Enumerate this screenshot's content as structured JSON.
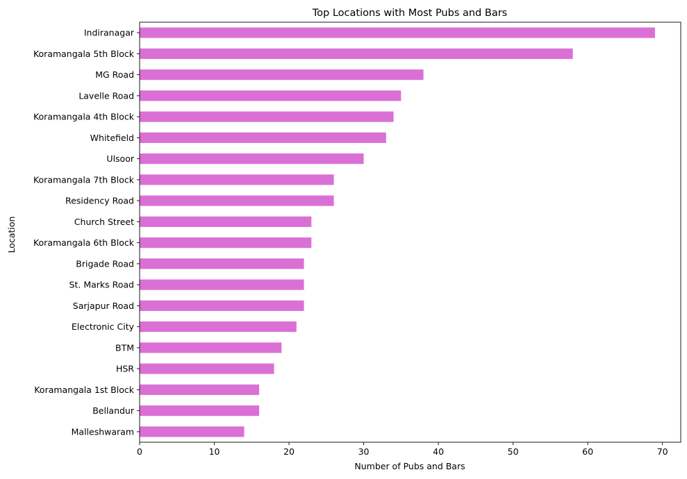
{
  "chart_data": {
    "type": "bar",
    "orientation": "horizontal",
    "title": "Top Locations with Most Pubs and Bars",
    "xlabel": "Number of Pubs and Bars",
    "ylabel": "Location",
    "bar_color": "#da70d6",
    "xlim": [
      0,
      72.45
    ],
    "xticks": [
      0,
      10,
      20,
      30,
      40,
      50,
      60,
      70
    ],
    "grid": false,
    "categories": [
      "Indiranagar",
      "Koramangala 5th Block",
      "MG Road",
      "Lavelle Road",
      "Koramangala 4th Block",
      "Whitefield",
      "Ulsoor",
      "Koramangala 7th Block",
      "Residency Road",
      "Church Street",
      "Koramangala 6th Block",
      "Brigade Road",
      "St. Marks Road",
      "Sarjapur Road",
      "Electronic City",
      "BTM",
      "HSR",
      "Koramangala 1st Block",
      "Bellandur",
      "Malleshwaram"
    ],
    "values": [
      69,
      58,
      38,
      35,
      34,
      33,
      30,
      26,
      26,
      23,
      23,
      22,
      22,
      22,
      21,
      19,
      18,
      16,
      16,
      14
    ]
  }
}
